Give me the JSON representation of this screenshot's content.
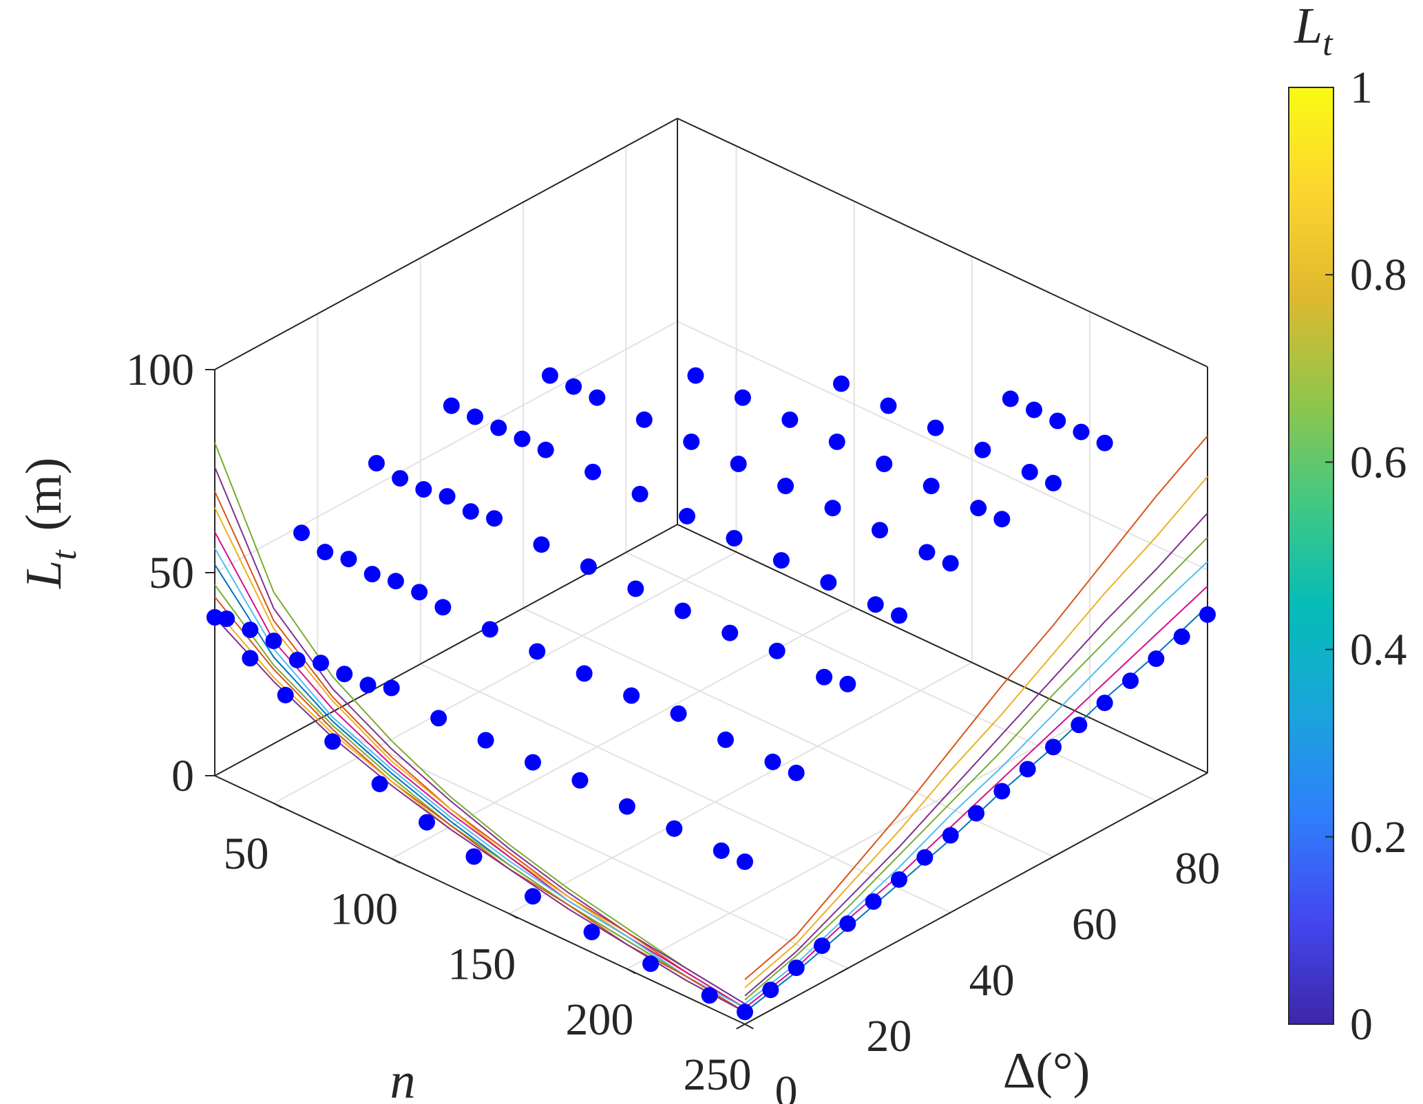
{
  "chart_data": {
    "type": "scatter",
    "subtype": "3d scatter with projected curves",
    "axes": {
      "x": {
        "label": "n",
        "ticks": [
          50,
          100,
          150,
          200,
          250
        ],
        "lim": [
          25,
          250
        ]
      },
      "y": {
        "label": "Δ(°)",
        "ticks": [
          0,
          20,
          40,
          60,
          80
        ],
        "lim": [
          0,
          90
        ]
      },
      "z": {
        "label": "L",
        "label_subscript": "t",
        "label_unit": "(m)",
        "ticks": [
          0,
          50,
          100
        ],
        "lim": [
          0,
          100
        ]
      }
    },
    "colorbar": {
      "title": "L",
      "title_subscript": "t",
      "ticks": [
        "0",
        "0.2",
        "0.4",
        "0.6",
        "0.8",
        "1"
      ],
      "range": [
        0,
        1
      ],
      "colormap": [
        "#3e26a8",
        "#4347f0",
        "#2f7ffb",
        "#1aa5db",
        "#05bcb8",
        "#41c883",
        "#92c54a",
        "#dfb92f",
        "#fcd52f",
        "#f9fb15"
      ]
    },
    "grid": true,
    "scatter_points": {
      "color": "#0000ff",
      "series": [
        {
          "delta": 0,
          "n": [
            25,
            30,
            40,
            50,
            60,
            70,
            80,
            90,
            100,
            120,
            140,
            160,
            180,
            200,
            220,
            240,
            250
          ],
          "Lt": [
            39,
            40,
            40,
            40,
            38,
            40,
            40,
            40,
            42,
            40,
            40,
            40,
            41,
            40,
            40,
            40,
            40
          ]
        },
        {
          "delta": 10,
          "n": [
            40,
            50,
            60,
            70,
            80,
            90,
            100,
            120,
            140,
            160,
            180,
            200,
            220,
            240,
            250
          ],
          "Lt": [
            57,
            55,
            56,
            55,
            56,
            56,
            55,
            55,
            55,
            55,
            55,
            56,
            55,
            55,
            55
          ]
        },
        {
          "delta": 20,
          "n": [
            50,
            60,
            70,
            80,
            90,
            100,
            120,
            140,
            160,
            180,
            200,
            220,
            240,
            250
          ],
          "Lt": [
            70,
            69,
            69,
            70,
            69,
            70,
            69,
            69,
            69,
            69,
            69,
            70,
            69,
            70
          ]
        },
        {
          "delta": 30,
          "n": [
            60,
            70,
            80,
            90,
            100,
            120,
            140,
            160,
            180,
            200,
            220,
            240,
            250
          ],
          "Lt": [
            80,
            80,
            80,
            80,
            80,
            80,
            80,
            80,
            80,
            80,
            80,
            80,
            80
          ]
        },
        {
          "delta": 40,
          "n": [
            80,
            90,
            100,
            120,
            140,
            160,
            180,
            200,
            220,
            240,
            250
          ],
          "Lt": [
            86,
            86,
            86,
            86,
            86,
            86,
            86,
            86,
            86,
            86,
            86
          ]
        },
        {
          "delta": 50,
          "n": [
            120,
            140,
            160,
            180,
            200,
            220,
            240,
            250
          ],
          "Lt": [
            90,
            90,
            90,
            90,
            90,
            90,
            90,
            90
          ]
        },
        {
          "delta": 60,
          "n": [
            160,
            180,
            200,
            220,
            240,
            250
          ],
          "Lt": [
            92,
            92,
            92,
            92,
            92,
            92
          ]
        },
        {
          "delta": 70,
          "n": [
            210,
            220,
            230,
            240,
            250
          ],
          "Lt": [
            95,
            95,
            95,
            95,
            95
          ]
        }
      ]
    },
    "projected_points_delta": {
      "n": 250,
      "delta": [
        0,
        5,
        10,
        15,
        20,
        25,
        30,
        35,
        40,
        45,
        50,
        55,
        60,
        65,
        70,
        75,
        80,
        85,
        90
      ],
      "Lt": [
        3,
        5,
        7,
        9,
        11,
        13,
        15,
        17,
        19,
        21,
        23,
        25,
        27,
        29,
        31,
        33,
        35,
        37,
        39
      ]
    },
    "curves_vs_delta": {
      "n": 250,
      "delta": [
        0,
        10,
        20,
        30,
        40,
        50,
        60,
        70,
        80,
        90
      ],
      "series": [
        {
          "color": "#0072bd",
          "Lt": [
            3,
            6,
            10,
            14,
            18,
            23,
            27,
            32,
            36,
            41
          ]
        },
        {
          "color": "#d40f8c",
          "Lt": [
            4,
            7,
            12,
            16,
            21,
            26,
            31,
            36,
            41,
            46
          ]
        },
        {
          "color": "#4dbeee",
          "Lt": [
            5,
            8,
            13,
            18,
            24,
            29,
            35,
            41,
            47,
            52
          ]
        },
        {
          "color": "#77ac30",
          "Lt": [
            6,
            10,
            15,
            21,
            27,
            33,
            40,
            46,
            52,
            58
          ]
        },
        {
          "color": "#7e2f8e",
          "Lt": [
            7,
            11,
            17,
            23,
            30,
            37,
            44,
            51,
            57,
            64
          ]
        },
        {
          "color": "#edb120",
          "Lt": [
            9,
            13,
            20,
            27,
            35,
            42,
            50,
            58,
            65,
            73
          ]
        },
        {
          "color": "#d95319",
          "Lt": [
            11,
            15,
            23,
            31,
            40,
            49,
            57,
            66,
            75,
            83
          ]
        }
      ]
    },
    "curves_vs_n": {
      "delta": 0,
      "n": [
        25,
        50,
        75,
        100,
        125,
        150,
        175,
        200,
        225,
        250
      ],
      "series": [
        {
          "color": "#77ac30",
          "Lt": [
            82,
            52,
            38,
            29,
            22,
            17,
            13,
            10,
            7,
            5
          ]
        },
        {
          "color": "#7e2f8e",
          "Lt": [
            76,
            48,
            35,
            27,
            21,
            16,
            12,
            9,
            7,
            5
          ]
        },
        {
          "color": "#d95319",
          "Lt": [
            70,
            45,
            33,
            25,
            19,
            15,
            11,
            9,
            6,
            4
          ]
        },
        {
          "color": "#edb120",
          "Lt": [
            66,
            43,
            32,
            24,
            19,
            14,
            11,
            8,
            6,
            4
          ]
        },
        {
          "color": "#d40f8c",
          "Lt": [
            60,
            40,
            30,
            23,
            18,
            14,
            10,
            8,
            6,
            4
          ]
        },
        {
          "color": "#4dbeee",
          "Lt": [
            56,
            38,
            28,
            22,
            17,
            13,
            10,
            8,
            5,
            4
          ]
        },
        {
          "color": "#0072bd",
          "Lt": [
            52,
            36,
            27,
            21,
            16,
            12,
            9,
            7,
            5,
            3
          ]
        },
        {
          "color": "#77ac30",
          "Lt": [
            47,
            34,
            26,
            20,
            15,
            12,
            9,
            7,
            5,
            3
          ]
        },
        {
          "color": "#d95319",
          "Lt": [
            44,
            33,
            25,
            19,
            15,
            11,
            9,
            6,
            5,
            3
          ]
        },
        {
          "color": "#edb120",
          "Lt": [
            41,
            31,
            24,
            19,
            14,
            11,
            8,
            6,
            4,
            3
          ]
        },
        {
          "color": "#7e2f8e",
          "Lt": [
            39,
            30,
            23,
            18,
            14,
            11,
            8,
            6,
            4,
            3
          ]
        }
      ]
    },
    "projected_points_n": {
      "delta": 0,
      "n": [
        25,
        40,
        55,
        75,
        95,
        115,
        135,
        160,
        185,
        210,
        235
      ],
      "Lt": [
        39,
        33,
        28,
        22,
        17,
        13,
        10,
        7,
        5,
        4,
        3
      ]
    }
  }
}
